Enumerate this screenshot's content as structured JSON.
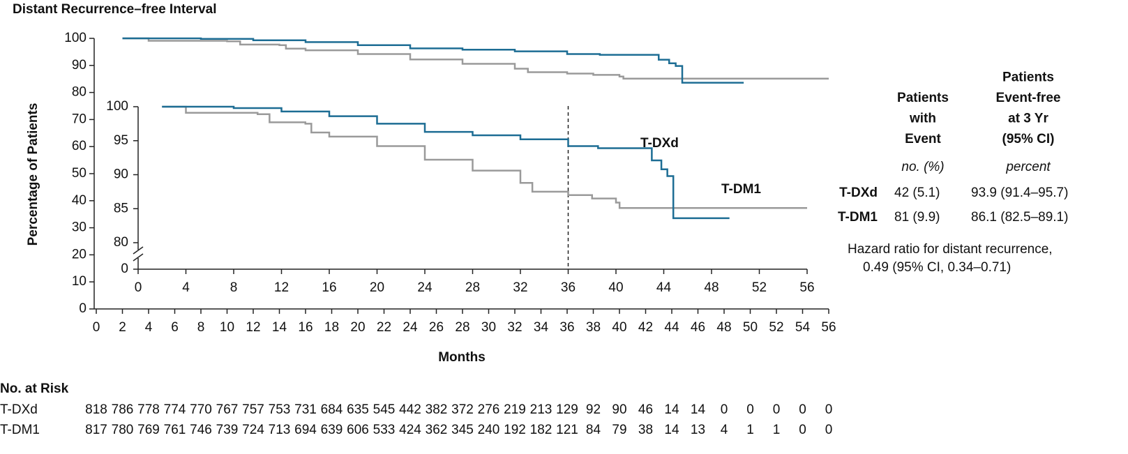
{
  "chart_data": {
    "type": "line",
    "title": "Distant Recurrence–free Interval",
    "ylabel": "Percentage of Patients",
    "xlabel": "Months",
    "xlim": [
      0,
      56
    ],
    "xticks": [
      0,
      2,
      4,
      6,
      8,
      10,
      12,
      14,
      16,
      18,
      20,
      22,
      24,
      26,
      28,
      30,
      32,
      34,
      36,
      38,
      40,
      42,
      44,
      46,
      48,
      50,
      52,
      54,
      56
    ],
    "ylim": [
      0,
      100
    ],
    "yticks": [
      0,
      10,
      20,
      30,
      40,
      50,
      60,
      70,
      80,
      90,
      100
    ],
    "series": [
      {
        "name": "T-DXd",
        "color": "#1d6d94",
        "x": [
          2,
          8,
          12,
          16,
          20,
          24,
          28,
          32,
          36,
          38.5,
          43,
          43.8,
          44.3,
          44.8,
          49.5
        ],
        "values": [
          100,
          99.8,
          99.3,
          98.6,
          97.5,
          96.3,
          95.8,
          95.2,
          94.2,
          93.9,
          92.1,
          90.8,
          89.8,
          83.6,
          83.6
        ]
      },
      {
        "name": "T-DM1",
        "color": "#9a9a9a",
        "x": [
          2,
          4,
          10,
          11,
          14,
          14.5,
          16,
          20,
          24,
          28,
          32,
          33,
          36,
          38,
          40,
          40.3,
          56
        ],
        "values": [
          100,
          99.1,
          98.9,
          97.7,
          97.5,
          96.2,
          95.6,
          94.2,
          92.2,
          90.6,
          88.8,
          87.5,
          87.0,
          86.5,
          85.9,
          85.1,
          85.1
        ]
      }
    ],
    "inset": {
      "xlim": [
        0,
        56
      ],
      "xticks": [
        0,
        4,
        8,
        12,
        16,
        20,
        24,
        28,
        32,
        36,
        40,
        44,
        48,
        52,
        56
      ],
      "ylim": [
        80,
        100
      ],
      "yticks": [
        80,
        85,
        90,
        95,
        100
      ],
      "break_tick": 0,
      "reference_x": 36
    },
    "side_table": {
      "columns": [
        {
          "header": [
            "Patients",
            "with",
            "Event"
          ],
          "unit": "no. (%)"
        },
        {
          "header": [
            "Patients",
            "Event-free",
            "at 3 Yr",
            "(95% CI)"
          ],
          "unit": "percent"
        }
      ],
      "rows": [
        {
          "name": "T-DXd",
          "cells": [
            "42 (5.1)",
            "93.9 (91.4–95.7)"
          ]
        },
        {
          "name": "T-DM1",
          "cells": [
            "81 (9.9)",
            "86.1 (82.5–89.1)"
          ]
        }
      ],
      "note": [
        "Hazard ratio for distant recurrence,",
        "0.49 (95% CI, 0.34–0.71)"
      ]
    },
    "risk_table": {
      "title": "No. at Risk",
      "rows": [
        {
          "name": "T-DXd",
          "values": [
            818,
            786,
            778,
            774,
            770,
            767,
            757,
            753,
            731,
            684,
            635,
            545,
            442,
            382,
            372,
            276,
            219,
            213,
            129,
            92,
            90,
            46,
            14,
            14,
            0,
            0,
            0,
            0,
            0
          ]
        },
        {
          "name": "T-DM1",
          "values": [
            817,
            780,
            769,
            761,
            746,
            739,
            724,
            713,
            694,
            639,
            606,
            533,
            424,
            362,
            345,
            240,
            192,
            182,
            121,
            84,
            79,
            38,
            14,
            13,
            4,
            1,
            1,
            0,
            0
          ]
        }
      ]
    }
  }
}
